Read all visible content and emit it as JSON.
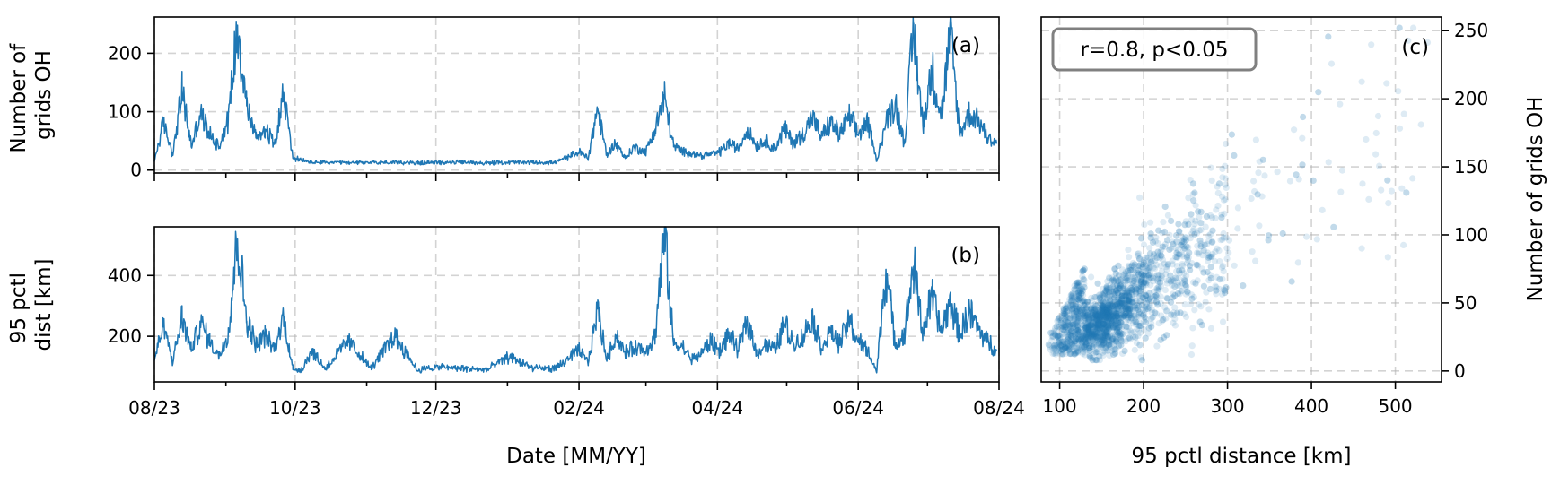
{
  "chart_data": [
    {
      "id": "a",
      "type": "line",
      "panel_label": "(a)",
      "ylabel_lines": [
        "Number of",
        "grids OH"
      ],
      "xlabel": "",
      "x_type": "date",
      "xlim": [
        "2023-08-01",
        "2024-08-01"
      ],
      "x_major_ticks": [
        "2023-08-01",
        "2023-10-01",
        "2023-12-01",
        "2024-02-01",
        "2024-04-01",
        "2024-06-01",
        "2024-08-01"
      ],
      "x_minor_ticks": [
        "2023-09-01",
        "2023-11-01",
        "2024-01-01",
        "2024-03-01",
        "2024-05-01",
        "2024-07-01"
      ],
      "show_x_tick_labels": false,
      "ylim": [
        -5,
        262
      ],
      "yticks": [
        0,
        100,
        200
      ],
      "grid": true,
      "series_color": "#1f77b4",
      "series": [
        {
          "x": [
            "2023-08-01",
            "2023-08-05",
            "2023-08-09",
            "2023-08-13",
            "2023-08-17",
            "2023-08-21",
            "2023-08-25",
            "2023-08-29",
            "2023-09-02",
            "2023-09-06",
            "2023-09-10",
            "2023-09-14",
            "2023-09-18",
            "2023-09-22",
            "2023-09-26",
            "2023-09-30",
            "2023-10-04",
            "2023-10-08",
            "2023-10-14",
            "2023-10-24",
            "2023-11-03",
            "2023-11-13",
            "2023-11-23",
            "2023-12-03",
            "2023-12-13",
            "2023-12-23",
            "2024-01-02",
            "2024-01-12",
            "2024-01-22",
            "2024-02-01",
            "2024-02-05",
            "2024-02-09",
            "2024-02-13",
            "2024-02-17",
            "2024-02-21",
            "2024-02-25",
            "2024-03-01",
            "2024-03-05",
            "2024-03-09",
            "2024-03-13",
            "2024-03-17",
            "2024-03-21",
            "2024-03-25",
            "2024-03-29",
            "2024-04-02",
            "2024-04-06",
            "2024-04-10",
            "2024-04-14",
            "2024-04-18",
            "2024-04-22",
            "2024-04-26",
            "2024-04-30",
            "2024-05-04",
            "2024-05-08",
            "2024-05-12",
            "2024-05-16",
            "2024-05-20",
            "2024-05-24",
            "2024-05-28",
            "2024-06-01",
            "2024-06-05",
            "2024-06-09",
            "2024-06-13",
            "2024-06-17",
            "2024-06-21",
            "2024-06-25",
            "2024-06-29",
            "2024-07-03",
            "2024-07-07",
            "2024-07-11",
            "2024-07-15",
            "2024-07-19",
            "2024-07-23",
            "2024-07-27",
            "2024-07-31"
          ],
          "y": [
            15,
            80,
            25,
            135,
            40,
            95,
            60,
            40,
            85,
            248,
            110,
            55,
            70,
            45,
            130,
            20,
            15,
            12,
            12,
            11,
            12,
            12,
            11,
            12,
            12,
            11,
            12,
            12,
            12,
            30,
            20,
            105,
            25,
            45,
            20,
            38,
            30,
            70,
            125,
            40,
            30,
            28,
            24,
            26,
            30,
            45,
            35,
            70,
            40,
            50,
            35,
            70,
            45,
            60,
            90,
            55,
            80,
            60,
            90,
            60,
            80,
            15,
            80,
            115,
            45,
            238,
            75,
            170,
            90,
            232,
            60,
            95,
            85,
            55,
            45
          ]
        }
      ]
    },
    {
      "id": "b",
      "type": "line",
      "panel_label": "(b)",
      "ylabel_lines": [
        "95 pctl",
        "dist [km]"
      ],
      "xlabel": "Date [MM/YY]",
      "x_type": "date",
      "xlim": [
        "2023-08-01",
        "2024-08-01"
      ],
      "x_major_ticks": [
        "2023-08-01",
        "2023-10-01",
        "2023-12-01",
        "2024-02-01",
        "2024-04-01",
        "2024-06-01",
        "2024-08-01"
      ],
      "x_tick_labels": [
        "08/23",
        "10/23",
        "12/23",
        "02/24",
        "04/24",
        "06/24",
        "08/24"
      ],
      "x_minor_ticks": [
        "2023-09-01",
        "2023-11-01",
        "2024-01-01",
        "2024-03-01",
        "2024-05-01",
        "2024-07-01"
      ],
      "ylim": [
        50,
        560
      ],
      "yticks": [
        200,
        400
      ],
      "grid": true,
      "series_color": "#1f77b4",
      "series": [
        {
          "x": [
            "2023-08-01",
            "2023-08-05",
            "2023-08-09",
            "2023-08-13",
            "2023-08-17",
            "2023-08-21",
            "2023-08-25",
            "2023-08-29",
            "2023-09-02",
            "2023-09-06",
            "2023-09-10",
            "2023-09-14",
            "2023-09-18",
            "2023-09-22",
            "2023-09-26",
            "2023-09-30",
            "2023-10-04",
            "2023-10-08",
            "2023-10-14",
            "2023-10-24",
            "2023-11-03",
            "2023-11-13",
            "2023-11-23",
            "2023-12-03",
            "2023-12-13",
            "2023-12-23",
            "2024-01-02",
            "2024-01-12",
            "2024-01-22",
            "2024-02-01",
            "2024-02-05",
            "2024-02-09",
            "2024-02-13",
            "2024-02-17",
            "2024-02-21",
            "2024-02-25",
            "2024-03-01",
            "2024-03-05",
            "2024-03-09",
            "2024-03-13",
            "2024-03-17",
            "2024-03-21",
            "2024-03-25",
            "2024-03-29",
            "2024-04-02",
            "2024-04-06",
            "2024-04-10",
            "2024-04-14",
            "2024-04-18",
            "2024-04-22",
            "2024-04-26",
            "2024-04-30",
            "2024-05-04",
            "2024-05-08",
            "2024-05-12",
            "2024-05-16",
            "2024-05-20",
            "2024-05-24",
            "2024-05-28",
            "2024-06-01",
            "2024-06-05",
            "2024-06-09",
            "2024-06-13",
            "2024-06-17",
            "2024-06-21",
            "2024-06-25",
            "2024-06-29",
            "2024-07-03",
            "2024-07-07",
            "2024-07-11",
            "2024-07-15",
            "2024-07-19",
            "2024-07-23",
            "2024-07-27",
            "2024-07-31"
          ],
          "y": [
            120,
            230,
            110,
            260,
            150,
            240,
            180,
            130,
            210,
            520,
            250,
            170,
            200,
            150,
            260,
            90,
            85,
            150,
            90,
            180,
            90,
            200,
            85,
            95,
            90,
            85,
            130,
            90,
            90,
            150,
            110,
            290,
            120,
            200,
            140,
            160,
            150,
            195,
            535,
            170,
            160,
            120,
            140,
            180,
            150,
            200,
            150,
            250,
            140,
            170,
            150,
            240,
            170,
            190,
            260,
            160,
            210,
            170,
            250,
            180,
            150,
            80,
            420,
            170,
            200,
            430,
            210,
            330,
            210,
            310,
            200,
            280,
            220,
            180,
            150
          ]
        }
      ]
    },
    {
      "id": "c",
      "type": "scatter",
      "panel_label": "(c)",
      "annotation": "r=0.8, p<0.05",
      "xlabel": "95 pctl distance [km]",
      "ylabel": "Number of grids OH",
      "xlim": [
        78,
        555
      ],
      "ylim": [
        -8,
        260
      ],
      "xticks": [
        100,
        200,
        300,
        400,
        500
      ],
      "yticks": [
        0,
        50,
        100,
        150,
        200,
        250
      ],
      "grid": true,
      "point_color": "#1f77b4",
      "point_alpha": 0.15,
      "n_points": 2400
    }
  ]
}
